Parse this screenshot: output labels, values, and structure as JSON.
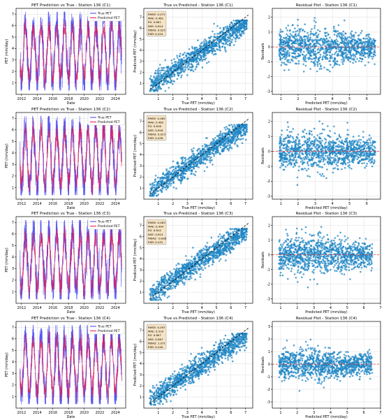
{
  "figure": {
    "rows": [
      {
        "id": "C1",
        "timeseries": {
          "title": "PET Prediction vs True - Station 136 (C1)",
          "xlabel": "Date",
          "ylabel": "PET (mm/day)",
          "ylim": [
            0,
            7.5
          ],
          "yticks": [
            1,
            2,
            3,
            4,
            5,
            6,
            7
          ],
          "xlim": [
            2011.3,
            2025.3
          ],
          "xticks": [
            "2012",
            "2014",
            "2016",
            "2018",
            "2020",
            "2022",
            "2024"
          ],
          "legend": [
            "True PET",
            "Predicted PET"
          ]
        },
        "scatter": {
          "title": "True vs Predicted - Station 136 (C1)",
          "xlabel": "True PET (mm/day)",
          "ylabel": "Predicted PET (mm/day)",
          "xlim": [
            0,
            7.5
          ],
          "ylim": [
            0,
            7.8
          ],
          "xticks": [
            1,
            2,
            3,
            4,
            5,
            6,
            7
          ],
          "yticks": [
            1,
            2,
            3,
            4,
            5,
            6,
            7
          ],
          "metrics": [
            "RMSE: 0.471",
            "MAE: 0.461",
            "R2: 0.801",
            "NSE: 0.814",
            "PBIAS: 0.025",
            "RSR: 0.424"
          ]
        },
        "residual": {
          "title": "Residual Plot - Station 136 (C1)",
          "xlabel": "Predicted PET (mm/day)",
          "ylabel": "Residuals",
          "xlim": [
            0.5,
            6.8
          ],
          "ylim": [
            -3.2,
            2.6
          ],
          "xticks": [
            1,
            2,
            3,
            4,
            5,
            6
          ],
          "yticks": [
            -3,
            -2,
            -1,
            0,
            1,
            2
          ]
        }
      },
      {
        "id": "C2",
        "timeseries": {
          "title": "PET Prediction vs True - Station 136 (C2)",
          "xlabel": "Date",
          "ylabel": "PET (mm/day)",
          "ylim": [
            0,
            7.5
          ],
          "yticks": [
            1,
            2,
            3,
            4,
            5,
            6,
            7
          ],
          "xlim": [
            2011.3,
            2025.3
          ],
          "xticks": [
            "2012",
            "2014",
            "2016",
            "2018",
            "2020",
            "2022",
            "2024"
          ],
          "legend": [
            "True PET",
            "Predicted PET"
          ]
        },
        "scatter": {
          "title": "True vs Predicted - Station 136 (C2)",
          "xlabel": "True PET (mm/day)",
          "ylabel": "Predicted PET (mm/day)",
          "xlim": [
            0,
            7.5
          ],
          "ylim": [
            0,
            7.8
          ],
          "xticks": [
            1,
            2,
            3,
            4,
            5,
            6,
            7
          ],
          "yticks": [
            1,
            2,
            3,
            4,
            5,
            6,
            7
          ],
          "metrics": [
            "RMSE: 0.465",
            "MAE: 0.463",
            "R2: 0.816",
            "NSE: 0.816",
            "PBIAS: 0.023",
            "RSR: 0.428"
          ]
        },
        "residual": {
          "title": "Residual Plot - Station 136 (C2)",
          "xlabel": "Predicted PET (mm/day)",
          "ylabel": "Residuals",
          "xlim": [
            0.5,
            6.8
          ],
          "ylim": [
            -3.2,
            2.6
          ],
          "xticks": [
            1,
            2,
            3,
            4,
            5,
            6
          ],
          "yticks": [
            -3,
            -2,
            -1,
            0,
            1,
            2
          ]
        }
      },
      {
        "id": "C3",
        "timeseries": {
          "title": "PET Prediction vs True - Station 136 (C3)",
          "xlabel": "Date",
          "ylabel": "PET (mm/day)",
          "ylim": [
            0,
            7.5
          ],
          "yticks": [
            1,
            2,
            3,
            4,
            5,
            6,
            7
          ],
          "xlim": [
            2011.3,
            2025.3
          ],
          "xticks": [
            "2012",
            "2014",
            "2016",
            "2018",
            "2020",
            "2022",
            "2024"
          ],
          "legend": [
            "True PET",
            "Predicted PET"
          ]
        },
        "scatter": {
          "title": "True vs Predicted - Station 136 (C3)",
          "xlabel": "True PET (mm/day)",
          "ylabel": "Predicted PET (mm/day)",
          "xlim": [
            0,
            7.5
          ],
          "ylim": [
            0,
            7.8
          ],
          "xticks": [
            1,
            2,
            3,
            4,
            5,
            6,
            7
          ],
          "yticks": [
            1,
            2,
            3,
            4,
            5,
            6,
            7
          ],
          "metrics": [
            "RMSE: 0.483",
            "MAE: 0.494",
            "R2: 0.814",
            "NSE: 0.814",
            "PBIAS: -0.006",
            "RSR: 0.431"
          ]
        },
        "residual": {
          "title": "Residual Plot - Station 136 (C3)",
          "xlabel": "Predicted PET (mm/day)",
          "ylabel": "Residuals",
          "xlim": [
            0.5,
            7
          ],
          "ylim": [
            -3.3,
            2.6
          ],
          "xticks": [
            1,
            2,
            3,
            4,
            5,
            6,
            7
          ],
          "yticks": [
            -3,
            -2,
            -1,
            0,
            1,
            2
          ]
        }
      },
      {
        "id": "C4",
        "timeseries": {
          "title": "PET Prediction vs True - Station 136 (C4)",
          "xlabel": "Date",
          "ylabel": "PET (mm/day)",
          "ylim": [
            0,
            7.5
          ],
          "yticks": [
            1,
            2,
            3,
            4,
            5,
            6,
            7
          ],
          "xlim": [
            2011.3,
            2025.3
          ],
          "xticks": [
            "2012",
            "2014",
            "2016",
            "2018",
            "2020",
            "2022",
            "2024"
          ],
          "legend": [
            "True PET",
            "Predicted PET"
          ]
        },
        "scatter": {
          "title": "True vs Predicted - Station 136 (C4)",
          "xlabel": "True PET (mm/day)",
          "ylabel": "Predicted PET (mm/day)",
          "xlim": [
            0,
            7.5
          ],
          "ylim": [
            0,
            7.8
          ],
          "xticks": [
            1,
            2,
            3,
            4,
            5,
            6,
            7
          ],
          "yticks": [
            1,
            2,
            3,
            4,
            5,
            6,
            7
          ],
          "metrics": [
            "RMSE: 0.497",
            "MAE: 0.510",
            "R2: 0.807",
            "NSE: 0.807",
            "PBIAS: 1.071",
            "RSR: 0.440"
          ]
        },
        "residual": {
          "title": "Residual Plot - Station 136 (C4)",
          "xlabel": "Predicted PET (mm/day)",
          "ylabel": "Residuals",
          "xlim": [
            0.5,
            7
          ],
          "ylim": [
            -3.5,
            3.4
          ],
          "xticks": [
            1,
            2,
            3,
            4,
            5,
            6,
            7
          ],
          "yticks": [
            -3,
            -2,
            -1,
            0,
            1,
            2,
            3
          ]
        }
      }
    ],
    "colors": {
      "true_pet": "#3b3bf0",
      "predicted_pet": "#e8174e",
      "scatter_points": "#1f86c4",
      "identity_line": "#000000",
      "zero_line": "#e63c3c",
      "grid": "#dddddd",
      "metrics_box_bg": "#f5e3c3"
    }
  },
  "chart_data": [
    {
      "type": "line",
      "panel": "timeseries",
      "series": [
        {
          "name": "True PET",
          "x": [
            2012,
            2012.5,
            2013,
            2013.5,
            2014,
            2014.5,
            2015,
            2015.5,
            2016,
            2016.5,
            2017,
            2017.5,
            2018,
            2018.5,
            2019,
            2019.5,
            2020,
            2020.5,
            2021,
            2021.5,
            2022,
            2022.5,
            2023,
            2023.5,
            2024,
            2024.5
          ],
          "values": [
            1.0,
            6.5,
            1.0,
            6.8,
            0.9,
            6.6,
            1.0,
            6.7,
            0.9,
            6.9,
            1.0,
            6.5,
            0.8,
            6.8,
            1.0,
            6.6,
            0.9,
            6.5,
            1.0,
            6.7,
            0.9,
            6.6,
            1.0,
            6.8,
            0.9,
            6.5
          ]
        },
        {
          "name": "Predicted PET",
          "x": [
            2012,
            2012.5,
            2013,
            2013.5,
            2014,
            2014.5,
            2015,
            2015.5,
            2016,
            2016.5,
            2017,
            2017.5,
            2018,
            2018.5,
            2019,
            2019.5,
            2020,
            2020.5,
            2021,
            2021.5,
            2022,
            2022.5,
            2023,
            2023.5,
            2024,
            2024.5
          ],
          "values": [
            1.2,
            5.8,
            1.2,
            6.0,
            1.1,
            5.9,
            1.2,
            6.0,
            1.1,
            6.1,
            1.2,
            5.8,
            1.1,
            6.0,
            1.2,
            5.9,
            1.1,
            5.8,
            1.2,
            6.0,
            1.1,
            5.9,
            1.2,
            6.0,
            1.1,
            5.8
          ]
        }
      ],
      "xlabel": "Date",
      "ylabel": "PET (mm/day)",
      "ylim": [
        0,
        7.5
      ],
      "grid": true,
      "legend": "top-right"
    },
    {
      "type": "scatter",
      "panel": "true-vs-predicted",
      "x_range": [
        0.4,
        7.2
      ],
      "y_range": [
        0.3,
        6.8
      ],
      "reference_line": "y = x",
      "xlabel": "True PET (mm/day)",
      "ylabel": "Predicted PET (mm/day)",
      "grid": true
    },
    {
      "type": "scatter",
      "panel": "residuals",
      "x_range": [
        0.8,
        6.6
      ],
      "y_range": [
        -3.1,
        2.4
      ],
      "reference_line": "y = 0",
      "xlabel": "Predicted PET (mm/day)",
      "ylabel": "Residuals",
      "grid": true
    }
  ]
}
